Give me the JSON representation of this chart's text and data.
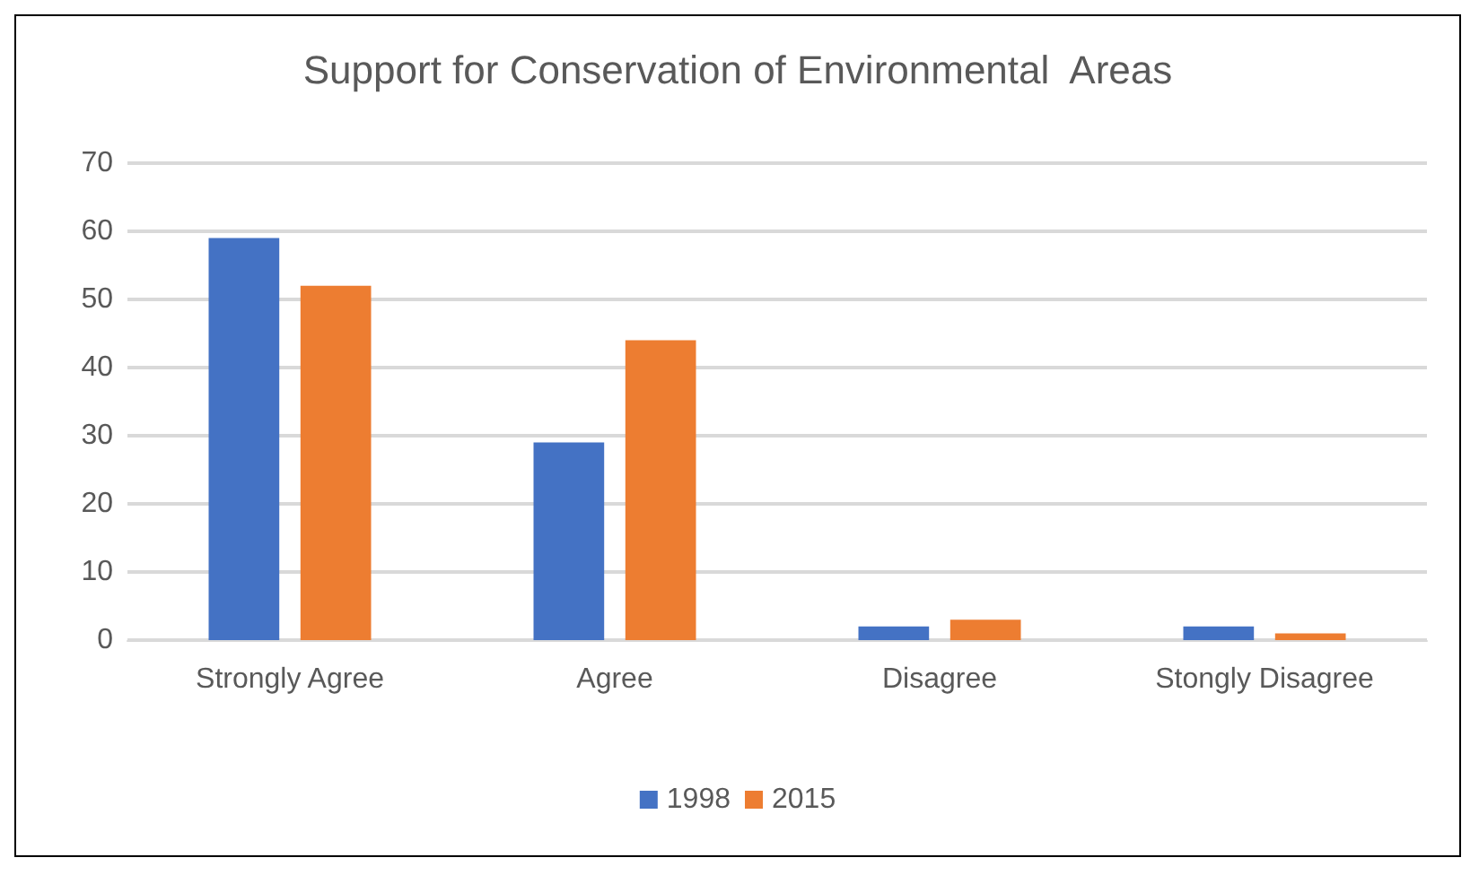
{
  "chart_data": {
    "type": "bar",
    "title": "Support for Conservation of Environmental  Areas",
    "categories": [
      "Strongly Agree",
      "Agree",
      "Disagree",
      "Stongly Disagree"
    ],
    "series": [
      {
        "name": "1998",
        "color": "#4472c4",
        "values": [
          59,
          29,
          2,
          2
        ]
      },
      {
        "name": "2015",
        "color": "#ed7d31",
        "values": [
          52,
          44,
          3,
          1
        ]
      }
    ],
    "ylim": [
      0,
      70
    ],
    "yticks": [
      0,
      10,
      20,
      30,
      40,
      50,
      60,
      70
    ],
    "grid": "y",
    "legend": "bottom"
  }
}
